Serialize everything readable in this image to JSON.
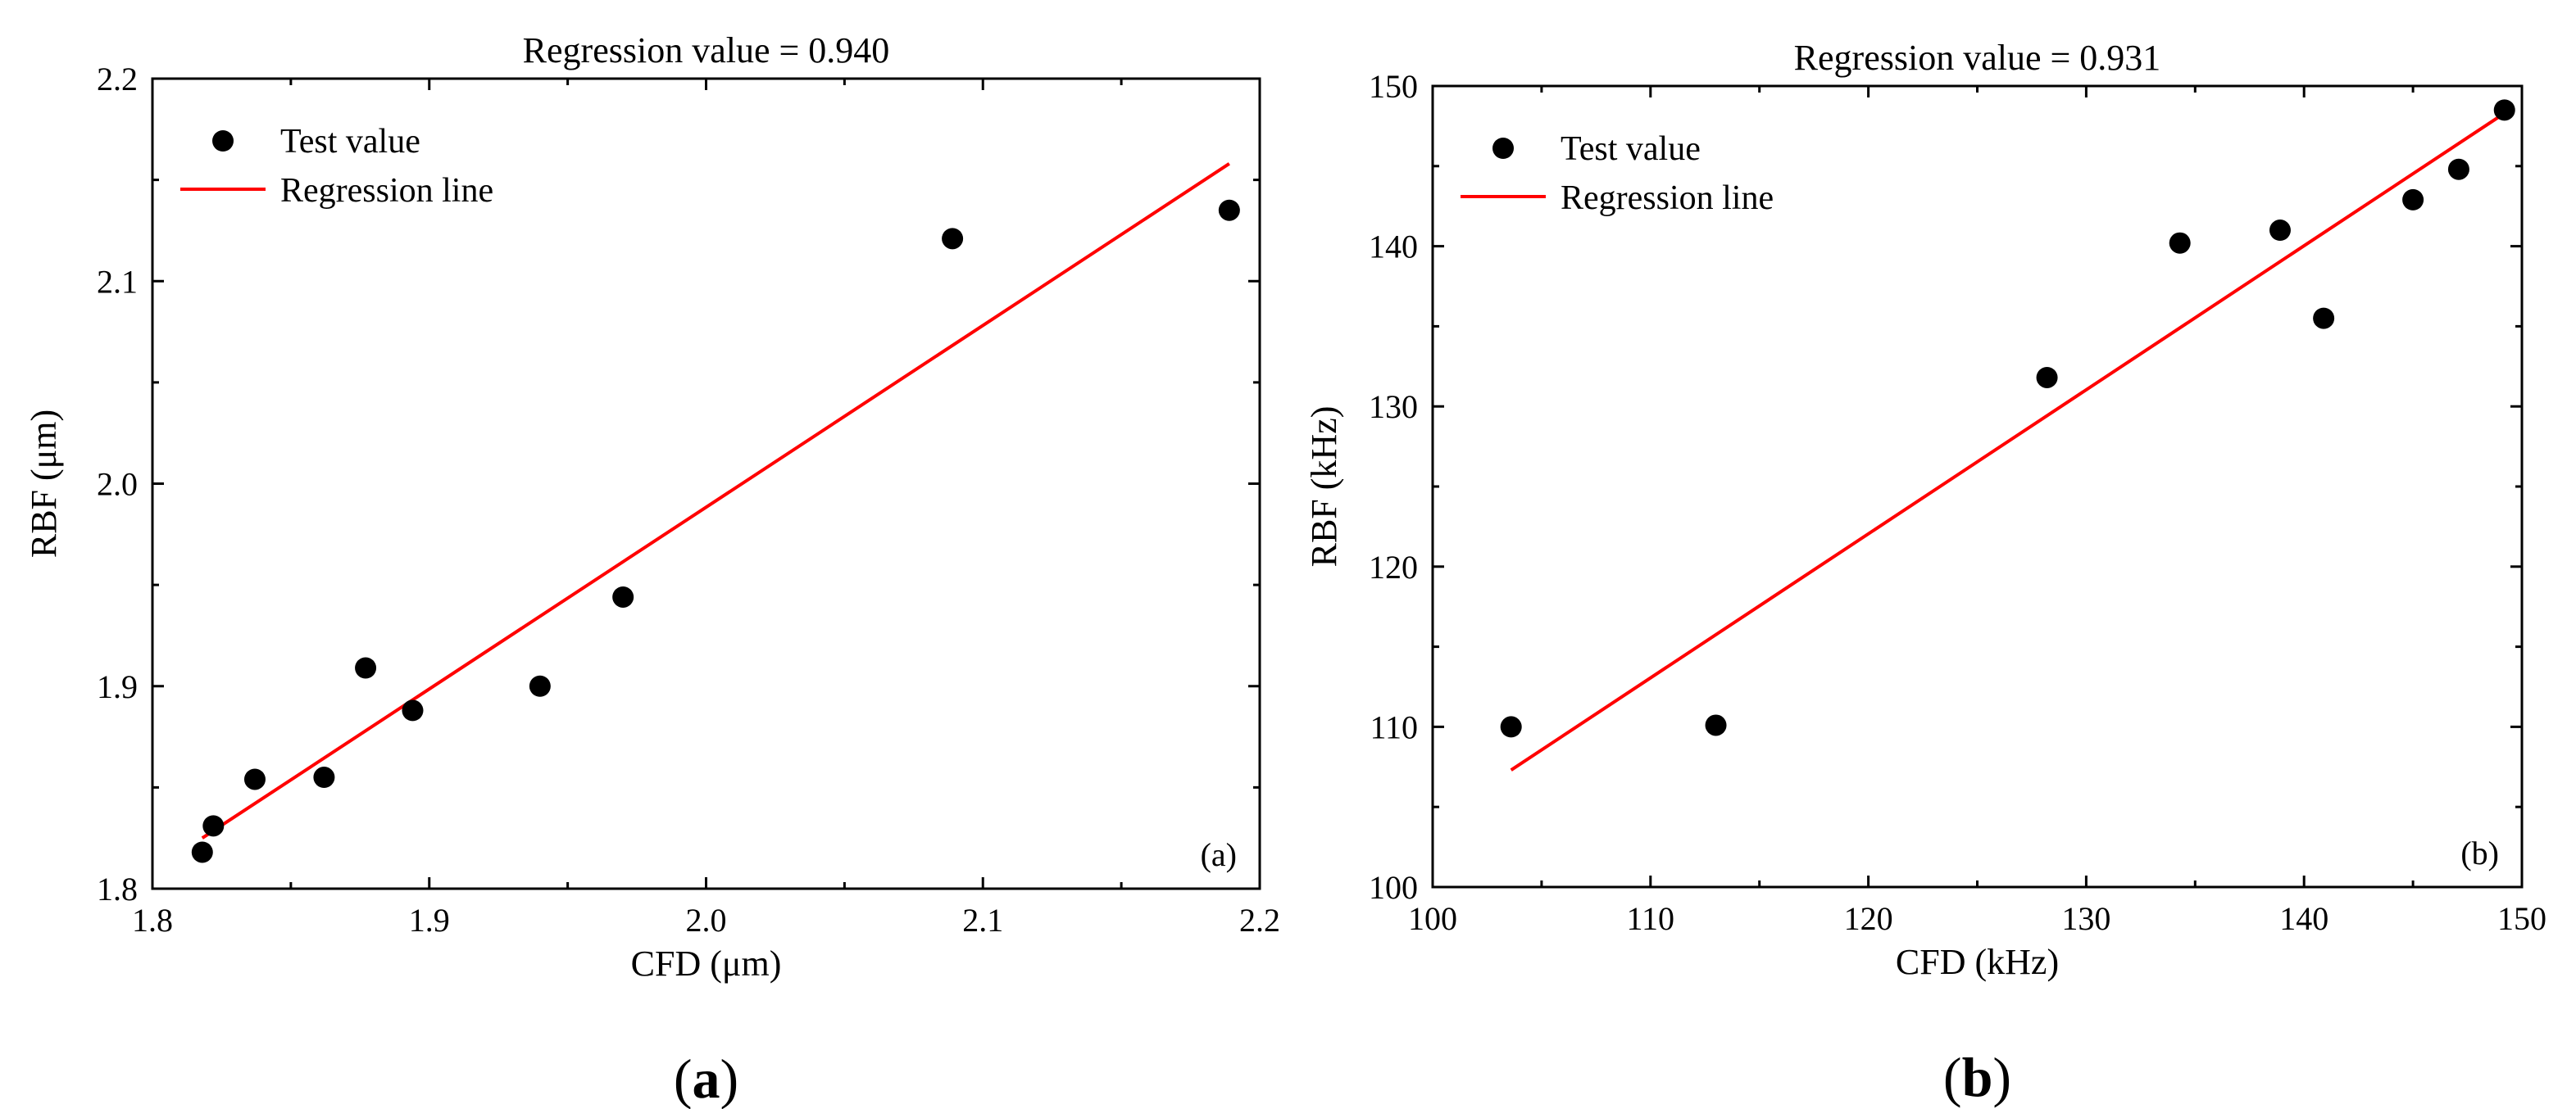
{
  "chart_data": [
    {
      "type": "scatter",
      "title": "Regression value = 0.940",
      "xlabel": "CFD (μm)",
      "ylabel": "RBF (μm)",
      "xlim": [
        1.8,
        2.2
      ],
      "ylim": [
        1.8,
        2.2
      ],
      "xticks": [
        "1.8",
        "1.9",
        "2.0",
        "2.1",
        "2.2"
      ],
      "yticks": [
        "1.8",
        "1.9",
        "2.0",
        "2.1",
        "2.2"
      ],
      "legend": {
        "points": "Test value",
        "line": "Regression line",
        "position": "top-left"
      },
      "panel_label": "(a)",
      "points": {
        "x": [
          1.818,
          1.822,
          1.837,
          1.862,
          1.877,
          1.894,
          1.94,
          1.97,
          2.089,
          2.189
        ],
        "y": [
          1.818,
          1.831,
          1.854,
          1.855,
          1.909,
          1.888,
          1.9,
          1.944,
          2.121,
          2.135
        ]
      },
      "regression_line": {
        "x": [
          1.818,
          2.189
        ],
        "y": [
          1.825,
          2.158
        ]
      },
      "caption": {
        "open": "(",
        "letter": "a",
        "close": ")"
      },
      "colors": {
        "points": "#000000",
        "line": "#ff0000"
      }
    },
    {
      "type": "scatter",
      "title": "Regression value = 0.931",
      "xlabel": "CFD (kHz)",
      "ylabel": "RBF (kHz)",
      "xlim": [
        100,
        150
      ],
      "ylim": [
        100,
        150
      ],
      "xticks": [
        "100",
        "110",
        "120",
        "130",
        "140",
        "150"
      ],
      "yticks": [
        "100",
        "110",
        "120",
        "130",
        "140",
        "150"
      ],
      "legend": {
        "points": "Test value",
        "line": "Regression line",
        "position": "top-left"
      },
      "panel_label": "(b)",
      "points": {
        "x": [
          103.6,
          113.0,
          128.2,
          134.3,
          138.9,
          140.9,
          145.0,
          147.1,
          149.2
        ],
        "y": [
          110.0,
          110.1,
          131.8,
          140.2,
          141.0,
          135.5,
          142.9,
          144.8,
          148.5
        ]
      },
      "regression_line": {
        "x": [
          103.6,
          149.2
        ],
        "y": [
          107.3,
          148.3
        ]
      },
      "caption": {
        "open": "(",
        "letter": "b",
        "close": ")"
      },
      "colors": {
        "points": "#000000",
        "line": "#ff0000"
      }
    }
  ]
}
